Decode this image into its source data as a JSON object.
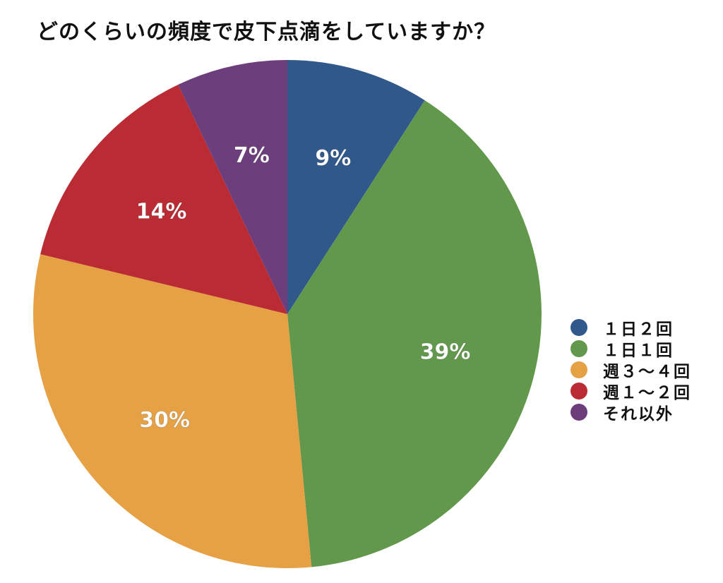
{
  "chart_data": {
    "type": "pie",
    "title": "どのくらいの頻度で皮下点滴をしていますか？",
    "categories": [
      "１日２回",
      "１日１回",
      "週３～４回",
      "週１～２回",
      "それ以外"
    ],
    "values": [
      9,
      39,
      30,
      14,
      7
    ],
    "data_labels": [
      "9%",
      "39%",
      "30%",
      "14%",
      "7%"
    ],
    "colors": [
      "#30588A",
      "#62984C",
      "#E6A145",
      "#BA2B33",
      "#6C3E7C"
    ],
    "legend_position": "right"
  }
}
